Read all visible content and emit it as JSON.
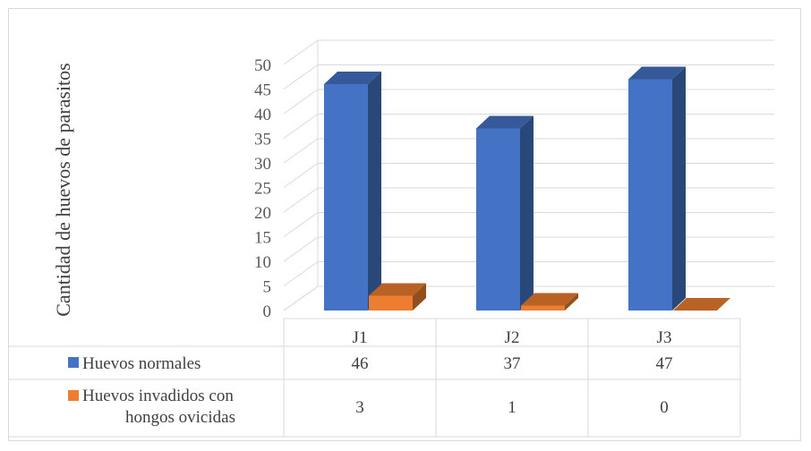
{
  "chart_data": {
    "type": "bar",
    "title": "",
    "xlabel": "",
    "ylabel": "Cantidad de huevos de parasitos",
    "categories": [
      "J1",
      "J2",
      "J3"
    ],
    "series": [
      {
        "name": "Huevos normales",
        "values": [
          46,
          37,
          47
        ],
        "color": "#4472c4"
      },
      {
        "name": "Huevos invadidos con hongos ovicidas",
        "values": [
          3,
          1,
          0
        ],
        "color": "#ed7d31"
      }
    ],
    "ylim": [
      0,
      50
    ],
    "yticks": [
      "0",
      "5",
      "10",
      "15",
      "20",
      "25",
      "30",
      "35",
      "40",
      "45",
      "50"
    ],
    "legend_placement": "data-table",
    "grid": true,
    "view": "3d"
  }
}
